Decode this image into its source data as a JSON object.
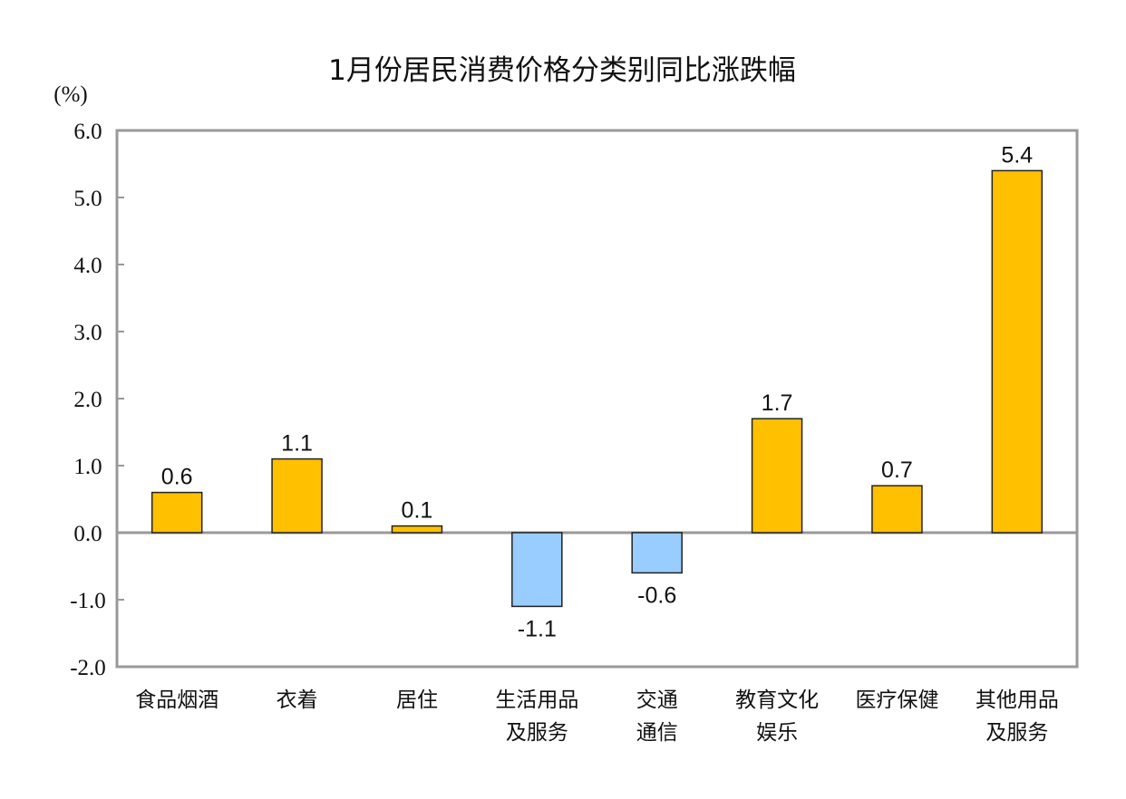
{
  "chart_data": {
    "type": "bar",
    "title": "1月份居民消费价格分类别同比涨跌幅",
    "ylabel": "(%)",
    "xlabel": "",
    "ylim": [
      -2.0,
      6.0
    ],
    "yticks": [
      "6.0",
      "5.0",
      "4.0",
      "3.0",
      "2.0",
      "1.0",
      "0.0",
      "-1.0",
      "-2.0"
    ],
    "grid": false,
    "categories": [
      [
        "食品烟酒"
      ],
      [
        "衣着"
      ],
      [
        "居住"
      ],
      [
        "生活用品",
        "及服务"
      ],
      [
        "交通",
        "通信"
      ],
      [
        "教育文化",
        "娱乐"
      ],
      [
        "医疗保健"
      ],
      [
        "其他用品",
        "及服务"
      ]
    ],
    "values": [
      0.6,
      1.1,
      0.1,
      -1.1,
      -0.6,
      1.7,
      0.7,
      5.4
    ],
    "data_labels": [
      "0.6",
      "1.1",
      "0.1",
      "-1.1",
      "-0.6",
      "1.7",
      "0.7",
      "5.4"
    ],
    "colors": {
      "positive": "#FFC000",
      "negative": "#99CCFF",
      "bar_outline": "#222222",
      "axis": "#999999"
    }
  }
}
